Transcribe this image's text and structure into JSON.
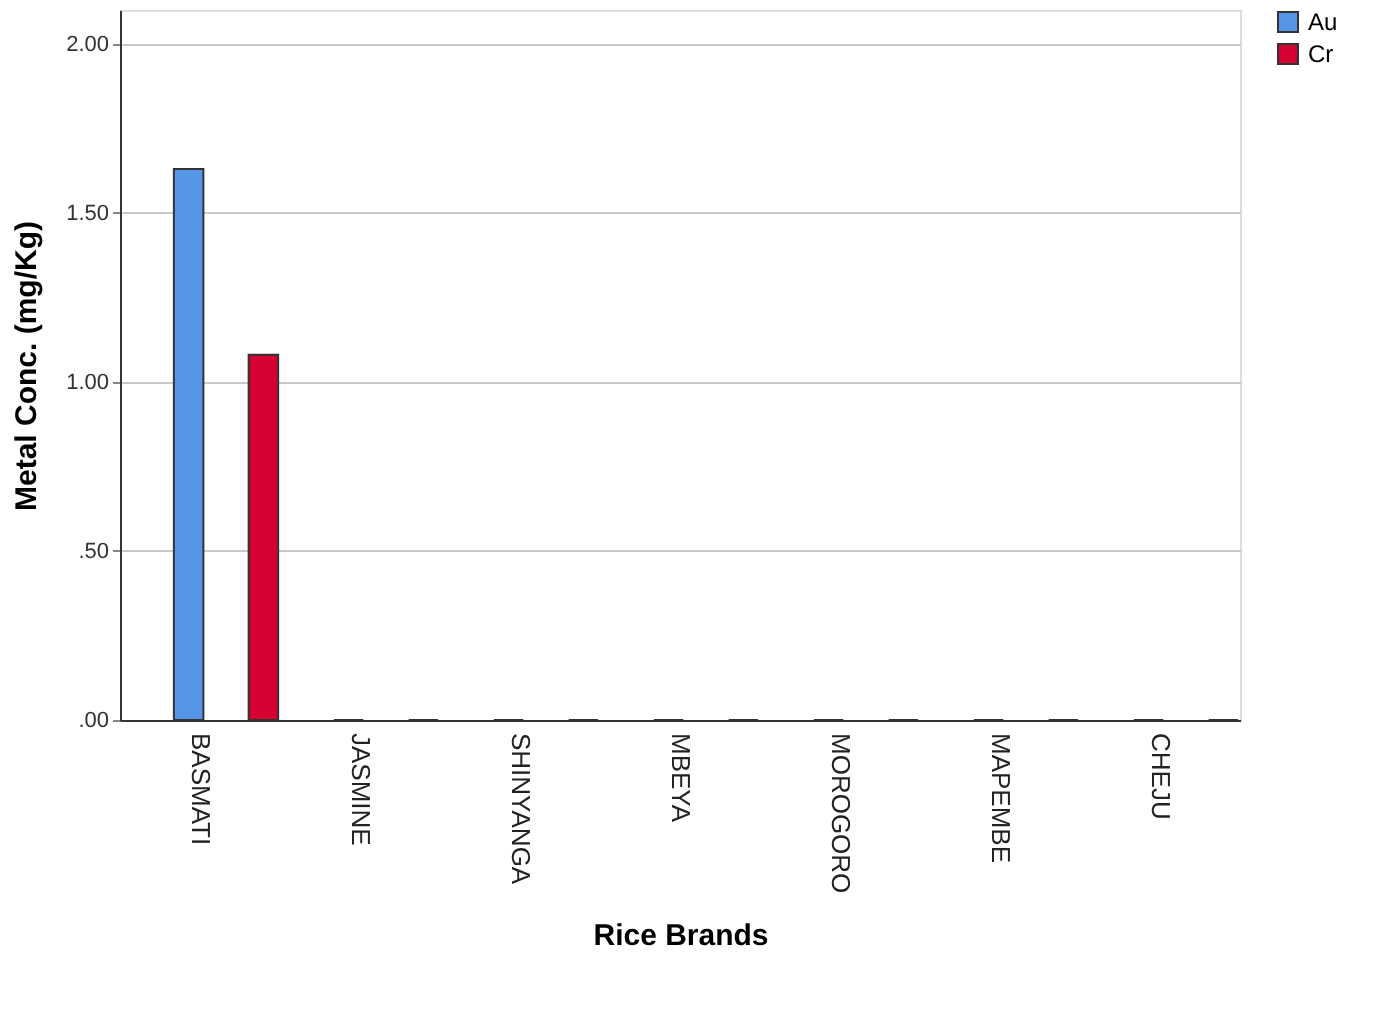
{
  "chart_data": {
    "type": "bar",
    "xlabel": "Rice Brands",
    "ylabel": "Metal Conc. (mg/Kg)",
    "categories": [
      "BASMATI",
      "JASMINE",
      "SHINYANGA",
      "MBEYA",
      "MOROGORO",
      "MAPEMBE",
      "CHEJU"
    ],
    "series": [
      {
        "name": "Au",
        "color": "#5596e6",
        "values": [
          1.63,
          0,
          0,
          0,
          0,
          0,
          0
        ]
      },
      {
        "name": "Cr",
        "color": "#d60032",
        "values": [
          1.08,
          0,
          0,
          0,
          0,
          0,
          0
        ]
      }
    ],
    "ylim": [
      0,
      2.1
    ],
    "yticks": [
      {
        "value": 0,
        "label": ".00"
      },
      {
        "value": 0.5,
        "label": ".50"
      },
      {
        "value": 1,
        "label": "1.00"
      },
      {
        "value": 1.5,
        "label": "1.50"
      },
      {
        "value": 2,
        "label": "2.00"
      }
    ],
    "grid": "y",
    "legend": "top right"
  }
}
